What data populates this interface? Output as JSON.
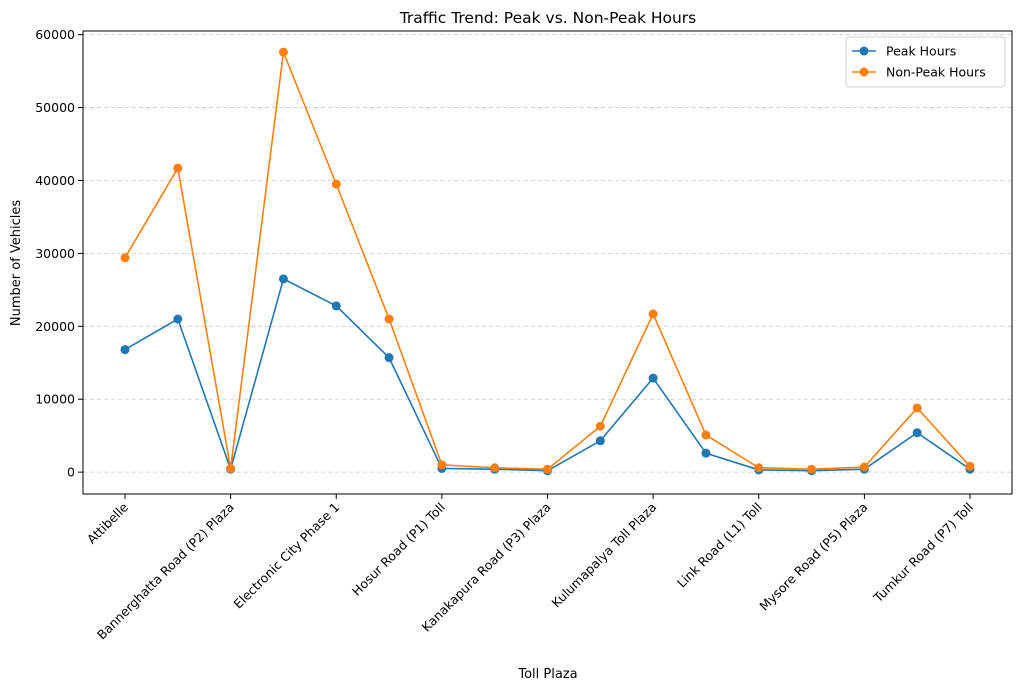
{
  "chart_data": {
    "type": "line",
    "title": "Traffic Trend: Peak vs. Non-Peak Hours",
    "xlabel": "Toll Plaza",
    "ylabel": "Number of Vehicles",
    "ylim": [
      -3000,
      60500
    ],
    "yticks": [
      0,
      10000,
      20000,
      30000,
      40000,
      50000,
      60000
    ],
    "grid": "y-dashed",
    "legend_position": "top-right",
    "tick_labels": [
      "Attibelle",
      "Bannerghatta Road (P2) Plaza",
      "Electronic  City Phase 1",
      "Hosur Road (P1) Toll",
      "Kanakapura Road (P3) Plaza",
      "Kulumapalya Toll Plaza",
      "Link Road (L1) Toll",
      "Mysore Road (P5) Plaza",
      "Tumkur Road (P7) Toll"
    ],
    "tick_positions": [
      0,
      2,
      4,
      6,
      8,
      10,
      12,
      14,
      16
    ],
    "x": [
      0,
      1,
      2,
      3,
      4,
      5,
      6,
      7,
      8,
      9,
      10,
      11,
      12,
      13,
      14,
      15,
      16
    ],
    "series": [
      {
        "name": "Peak Hours",
        "color": "#1f77b4",
        "values": [
          16800,
          21000,
          400,
          26500,
          22800,
          15700,
          500,
          400,
          200,
          4300,
          12900,
          2600,
          300,
          200,
          400,
          5400,
          400
        ]
      },
      {
        "name": "Non-Peak Hours",
        "color": "#ff7f0e",
        "values": [
          29400,
          41700,
          500,
          57600,
          39500,
          21000,
          1000,
          600,
          400,
          6300,
          21700,
          5100,
          600,
          400,
          700,
          8800,
          800
        ]
      }
    ]
  }
}
